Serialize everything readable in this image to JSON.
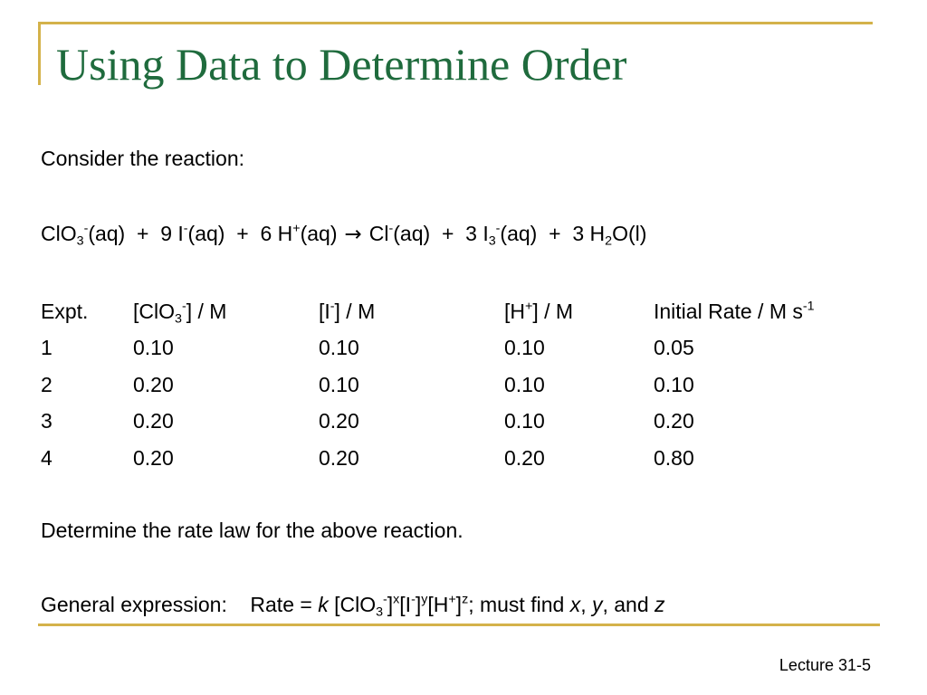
{
  "slide": {
    "title": "Using Data to Determine Order",
    "intro": "Consider the reaction:",
    "reaction": {
      "r1": "ClO",
      "r1_sub": "3",
      "r1_sup": "-",
      "r1_state": "(aq)",
      "plus1": "+",
      "r2_coef": "9 I",
      "r2_sup": "-",
      "r2_state": "(aq)",
      "plus2": "+",
      "r3_coef": "6 H",
      "r3_sup": "+",
      "r3_state": "(aq)",
      "arrow": "→",
      "p1": "Cl",
      "p1_sup": "-",
      "p1_state": "(aq)",
      "plus3": "+",
      "p2_coef": "3 I",
      "p2_sub": "3",
      "p2_sup": "-",
      "p2_state": "(aq)",
      "plus4": "+",
      "p3_coef": "3 H",
      "p3_sub": "2",
      "p3_rest": "O(l)"
    },
    "table": {
      "headers": {
        "expt": "Expt.",
        "clo3_a": "[ClO",
        "clo3_sub": "3",
        "clo3_sup": "-",
        "clo3_b": "] / M",
        "i_a": "[I",
        "i_sup": "-",
        "i_b": "] / M",
        "h_a": "[H",
        "h_sup": "+",
        "h_b": "] / M",
        "rate_a": "Initial Rate / M s",
        "rate_sup": "-1"
      },
      "rows": [
        [
          "1",
          "0.10",
          "0.10",
          "0.10",
          "0.05"
        ],
        [
          "2",
          "0.20",
          "0.10",
          "0.10",
          "0.10"
        ],
        [
          "3",
          "0.20",
          "0.20",
          "0.10",
          "0.20"
        ],
        [
          "4",
          "0.20",
          "0.20",
          "0.20",
          "0.80"
        ]
      ]
    },
    "question": "Determine the rate law for the above reaction.",
    "general": {
      "label": "General expression:",
      "rate_eq": "Rate =",
      "k": "k",
      "clo3": "[ClO",
      "clo3_sub": "3",
      "clo3_sup": "-",
      "close1": "]",
      "x_sup": "x",
      "i": "[I",
      "i_sup": "-",
      "close2": "]",
      "y_sup": "y",
      "h": "[H",
      "h_sup": "+",
      "close3": "]",
      "z_sup": "z",
      "tail": "; must find",
      "x": "x",
      "comma": ",",
      "y": "y",
      "and": ", and",
      "z": "z"
    },
    "footer": "Lecture 31-5",
    "colors": {
      "title": "#1f6b3d",
      "accent_rule": "#d4b24a"
    }
  }
}
